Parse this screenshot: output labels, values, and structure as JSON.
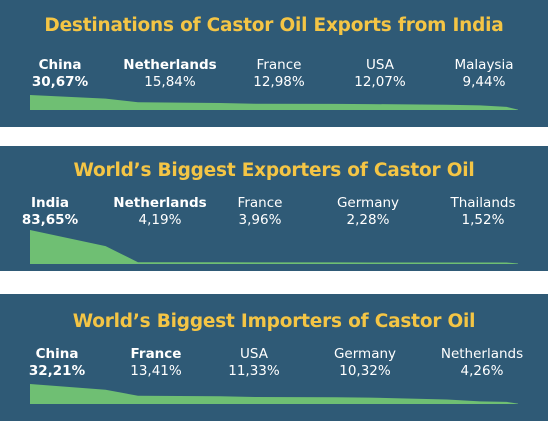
{
  "colors": {
    "panel": "#2f5a76",
    "title": "#f4c545",
    "text": "#ffffff",
    "area": "#6fbf73"
  },
  "chart_data": [
    {
      "type": "area",
      "title": "Destinations of Castor Oil Exports from India",
      "categories": [
        "China",
        "Netherlands",
        "France",
        "USA",
        "Malaysia"
      ],
      "labels": [
        "30,67%",
        "15,84%",
        "12,98%",
        "12,07%",
        "9,44%"
      ],
      "values": [
        30.67,
        15.84,
        12.98,
        12.07,
        9.44
      ]
    },
    {
      "type": "area",
      "title": "World’s Biggest Exporters of Castor Oil",
      "categories": [
        "India",
        "Netherlands",
        "France",
        "Germany",
        "Thailands"
      ],
      "labels": [
        "83,65%",
        "4,19%",
        "3,96%",
        "2,28%",
        "1,52%"
      ],
      "values": [
        83.65,
        4.19,
        3.96,
        2.28,
        1.52
      ]
    },
    {
      "type": "area",
      "title": "World’s Biggest Importers of Castor Oil",
      "categories": [
        "China",
        "France",
        "USA",
        "Germany",
        "Netherlands"
      ],
      "labels": [
        "32,21%",
        "13,41%",
        "11,33%",
        "10,32%",
        "4,26%"
      ],
      "values": [
        32.21,
        13.41,
        11.33,
        10.32,
        4.26
      ]
    }
  ]
}
